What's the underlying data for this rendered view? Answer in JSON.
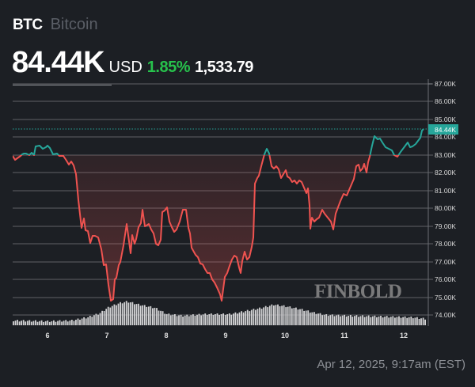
{
  "header": {
    "symbol": "BTC",
    "name": "Bitcoin",
    "price": "84.44K",
    "currency": "USD",
    "change_percent": "1.85%",
    "change_value": "1,533.79"
  },
  "current_price_label": "84.44K",
  "watermark": "FINBOLD",
  "timestamp": "Apr 12, 2025, 9:17am (EST)",
  "colors": {
    "background": "#1c1f24",
    "up": "#26a69a",
    "down": "#ef5350",
    "percent_green": "#27c24c",
    "volume": "#d9d9d9"
  },
  "chart_data": {
    "type": "line",
    "title": "BTC Bitcoin",
    "xlabel": "",
    "ylabel": "",
    "x_tick_labels": [
      "6",
      "7",
      "8",
      "9",
      "10",
      "11",
      "12"
    ],
    "y_tick_labels": [
      "87.00K",
      "86.00K",
      "85.00K",
      "84.00K",
      "83.00K",
      "82.00K",
      "81.00K",
      "80.00K",
      "79.00K",
      "78.00K",
      "77.00K",
      "76.00K",
      "75.00K",
      "74.00K"
    ],
    "ylim": [
      73.6,
      87.0
    ],
    "grid": true,
    "baseline": 83.0,
    "last_price": 84.44,
    "series": [
      {
        "name": "BTC/USD",
        "x": [
          "Apr 5.5",
          "Apr 6",
          "Apr 6.5",
          "Apr 7",
          "Apr 7.2",
          "Apr 7.5",
          "Apr 8",
          "Apr 8.4",
          "Apr 8.9",
          "Apr 9.4",
          "Apr 9.6",
          "Apr 10",
          "Apr 10.4",
          "Apr 10.6",
          "Apr 11",
          "Apr 11.5",
          "Apr 12",
          "Apr 12.4"
        ],
        "values": [
          82.9,
          83.5,
          82.5,
          77.5,
          74.8,
          79.1,
          80.0,
          77.5,
          75.2,
          77.1,
          83.4,
          82.0,
          81.5,
          79.2,
          80.8,
          83.9,
          83.0,
          84.44
        ]
      },
      {
        "name": "Volume",
        "type": "bar",
        "relative_profile": "low on Apr 5-6, rising on Apr 7 with peak near Apr 7.5, moderate Apr 8-9, second peak near Apr 9.7, tapering Apr 10.5-12"
      }
    ]
  }
}
